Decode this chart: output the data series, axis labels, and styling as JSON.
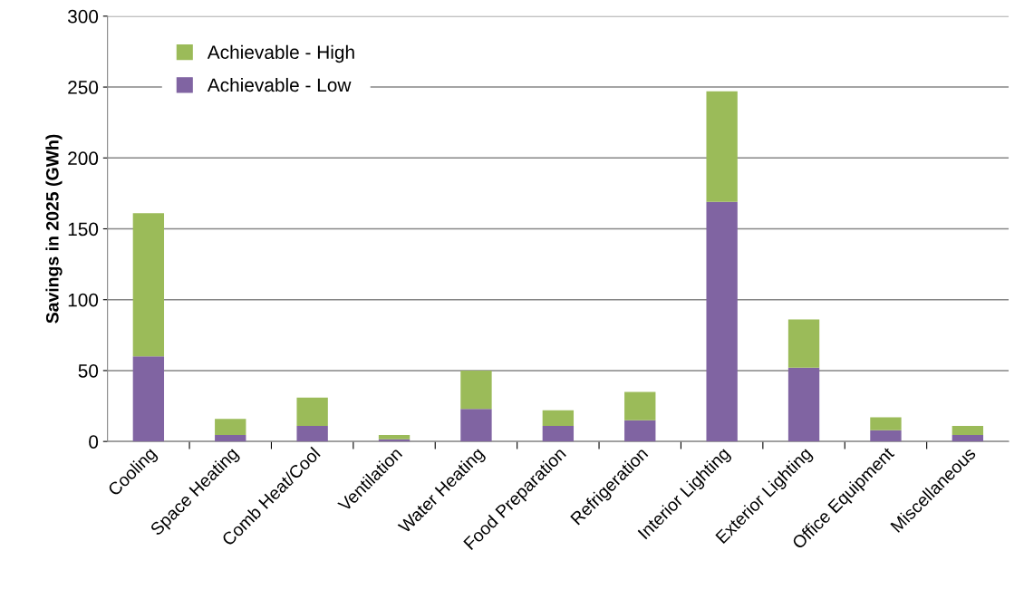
{
  "chart_data": {
    "type": "bar",
    "stacked": true,
    "ylabel": "Savings in 2025 (GWh)",
    "categories": [
      "Cooling",
      "Space Heating",
      "Comb Heat/Cool",
      "Ventilation",
      "Water Heating",
      "Food Preparation",
      "Refrigeration",
      "Interior Lighting",
      "Exterior Lighting",
      "Office Equipment",
      "Miscellaneous"
    ],
    "series": [
      {
        "name": "Achievable - Low",
        "color": "#8064a2",
        "values": [
          60,
          4.5,
          11,
          1.5,
          23,
          11,
          15,
          169,
          52,
          8,
          4.5
        ]
      },
      {
        "name": "Achievable - High",
        "color": "#9bbb59",
        "values": [
          101,
          11.5,
          20,
          3,
          27,
          11,
          20,
          78,
          34,
          9,
          6.5
        ]
      }
    ],
    "ylim": [
      0,
      300
    ],
    "yticks": [
      0,
      50,
      100,
      150,
      200,
      250,
      300
    ],
    "grid": "y",
    "legend": "top left"
  }
}
